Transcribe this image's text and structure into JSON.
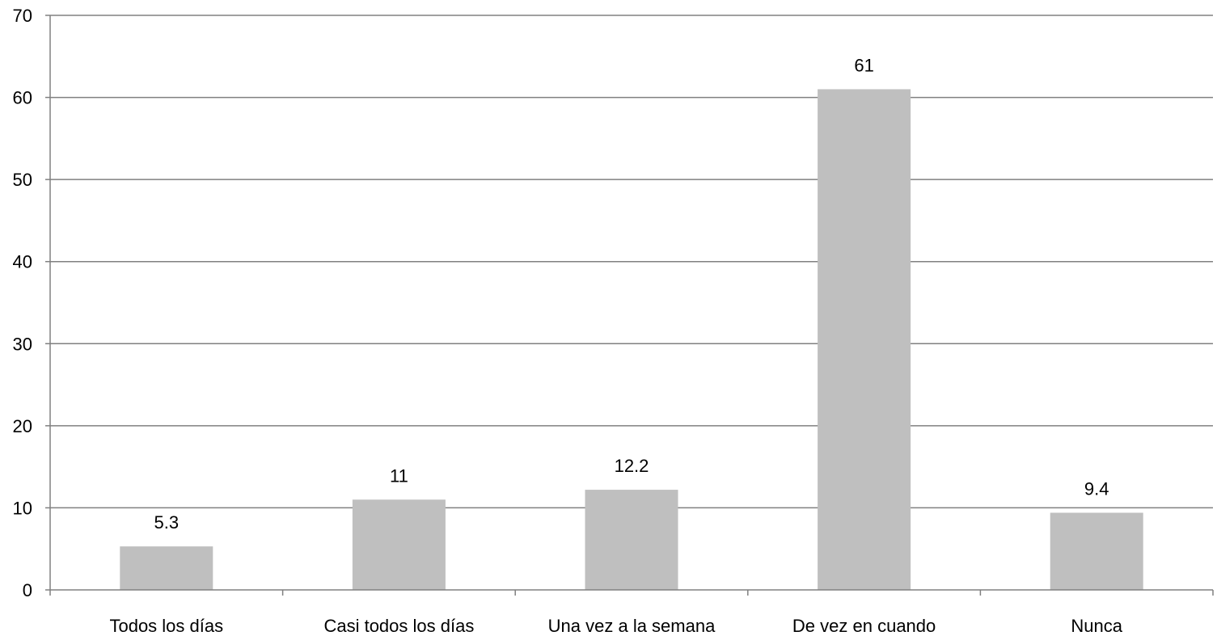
{
  "chart_data": {
    "type": "bar",
    "categories": [
      "Todos los días",
      "Casi todos los días",
      "Una vez a la semana",
      "De vez en cuando",
      "Nunca"
    ],
    "values": [
      5.3,
      11,
      12.2,
      61,
      9.4
    ],
    "data_labels": [
      "5.3",
      "11",
      "12.2",
      "61",
      "9.4"
    ],
    "title": "",
    "xlabel": "",
    "ylabel": "",
    "ylim": [
      0,
      70
    ],
    "yticks": [
      0,
      10,
      20,
      30,
      40,
      50,
      60,
      70
    ],
    "grid": true,
    "legend": "none",
    "colors": {
      "bar": "#bfbfbf",
      "grid": "#808080",
      "axis": "#808080",
      "text": "#000000"
    }
  }
}
